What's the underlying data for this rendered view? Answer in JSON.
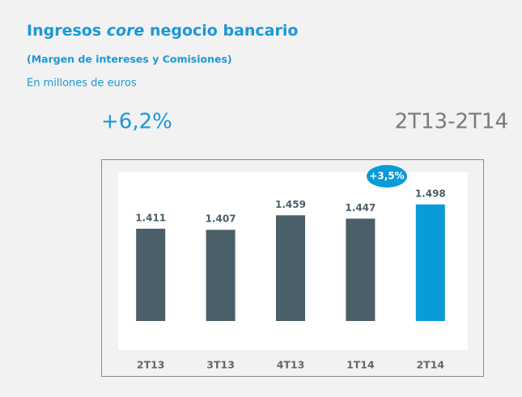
{
  "chart_data": {
    "type": "bar",
    "title": [
      "Ingresos",
      "core",
      "negocio bancario"
    ],
    "subtitle": "(Margen de intereses y Comisiones)",
    "unit_label": "En millones de euros",
    "growth": "+6,2%",
    "period": "2T13-2T14",
    "annotation": "+3,5%",
    "categories": [
      "2T13",
      "3T13",
      "4T13",
      "1T14",
      "2T14"
    ],
    "values": [
      1411,
      1407,
      1459,
      1447,
      1498
    ],
    "value_labels": [
      "1.411",
      "1.407",
      "1.459",
      "1.447",
      "1.498"
    ],
    "colors": [
      "#4b5f69",
      "#4b5f69",
      "#4b5f69",
      "#4b5f69",
      "#0a9bd9"
    ],
    "ylim": [
      1080,
      1570
    ]
  }
}
